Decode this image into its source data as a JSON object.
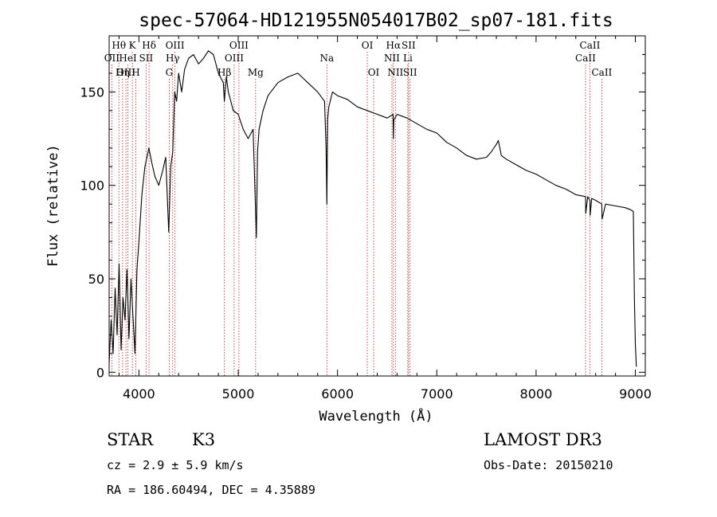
{
  "chart_data": {
    "type": "line",
    "title": "spec-57064-HD121955N054017B02_sp07-181.fits",
    "xlabel": "Wavelength (Å)",
    "ylabel": "Flux (relative)",
    "xlim": [
      3700,
      9100
    ],
    "ylim": [
      -2,
      180
    ],
    "xticks": [
      4000,
      5000,
      6000,
      7000,
      8000,
      9000
    ],
    "yticks": [
      0,
      50,
      100,
      150
    ],
    "series": [
      {
        "name": "flux",
        "x": [
          3700,
          3720,
          3740,
          3760,
          3780,
          3800,
          3820,
          3840,
          3860,
          3880,
          3900,
          3920,
          3940,
          3960,
          3980,
          4000,
          4030,
          4060,
          4100,
          4130,
          4160,
          4200,
          4240,
          4270,
          4300,
          4320,
          4340,
          4360,
          4380,
          4400,
          4430,
          4460,
          4500,
          4550,
          4600,
          4650,
          4700,
          4750,
          4800,
          4850,
          4860,
          4880,
          4900,
          4950,
          5000,
          5050,
          5100,
          5150,
          5170,
          5183,
          5195,
          5210,
          5250,
          5300,
          5400,
          5500,
          5600,
          5700,
          5800,
          5870,
          5885,
          5893,
          5900,
          5912,
          5950,
          6000,
          6100,
          6200,
          6300,
          6400,
          6500,
          6560,
          6563,
          6567,
          6600,
          6700,
          6800,
          6900,
          7000,
          7100,
          7200,
          7300,
          7400,
          7500,
          7550,
          7600,
          7620,
          7650,
          7700,
          7800,
          7900,
          8000,
          8100,
          8200,
          8300,
          8400,
          8498,
          8500,
          8520,
          8542,
          8545,
          8560,
          8600,
          8662,
          8665,
          8700,
          8800,
          8900,
          8950,
          8980,
          8990,
          9000,
          9010
        ],
        "values": [
          5,
          28,
          10,
          45,
          20,
          58,
          12,
          40,
          28,
          55,
          18,
          50,
          30,
          10,
          55,
          70,
          95,
          110,
          120,
          112,
          105,
          100,
          108,
          115,
          75,
          110,
          118,
          150,
          145,
          160,
          150,
          162,
          168,
          170,
          165,
          168,
          172,
          170,
          160,
          155,
          145,
          158,
          150,
          140,
          138,
          130,
          125,
          130,
          95,
          72,
          118,
          130,
          140,
          148,
          155,
          158,
          160,
          155,
          150,
          145,
          120,
          90,
          135,
          142,
          150,
          148,
          146,
          142,
          140,
          138,
          136,
          138,
          125,
          135,
          138,
          136,
          133,
          130,
          128,
          123,
          120,
          116,
          114,
          115,
          118,
          122,
          124,
          116,
          114,
          111,
          108,
          106,
          103,
          100,
          98,
          95,
          94,
          85,
          94,
          92,
          84,
          93,
          92,
          90,
          82,
          90,
          89,
          88,
          87,
          86,
          40,
          15,
          3
        ]
      }
    ],
    "line_ids": [
      {
        "label": "Hθ",
        "wavelength": 3798,
        "row": 1
      },
      {
        "label": "OII",
        "wavelength": 3727,
        "row": 2
      },
      {
        "label": "OIII",
        "wavelength": 3869,
        "row": 3
      },
      {
        "label": "K",
        "wavelength": 3934,
        "row": 1
      },
      {
        "label": "HeI",
        "wavelength": 3889,
        "row": 2
      },
      {
        "label": "Hη",
        "wavelength": 3835,
        "row": 3
      },
      {
        "label": "SII",
        "wavelength": 4072,
        "row": 2
      },
      {
        "label": "H",
        "wavelength": 3969,
        "row": 3
      },
      {
        "label": "Hδ",
        "wavelength": 4102,
        "row": 1
      },
      {
        "label": "OIII",
        "wavelength": 4363,
        "row": 1
      },
      {
        "label": "Hγ",
        "wavelength": 4340,
        "row": 2
      },
      {
        "label": "G",
        "wavelength": 4305,
        "row": 3
      },
      {
        "label": "OIII",
        "wavelength": 5007,
        "row": 1
      },
      {
        "label": "OIII",
        "wavelength": 4959,
        "row": 2
      },
      {
        "label": "Hβ",
        "wavelength": 4861,
        "row": 3
      },
      {
        "label": "Mg",
        "wavelength": 5175,
        "row": 3
      },
      {
        "label": "Na",
        "wavelength": 5893,
        "row": 2
      },
      {
        "label": "OI",
        "wavelength": 6300,
        "row": 1
      },
      {
        "label": "OI",
        "wavelength": 6364,
        "row": 3
      },
      {
        "label": "Hα",
        "wavelength": 6563,
        "row": 1
      },
      {
        "label": "NII",
        "wavelength": 6548,
        "row": 2
      },
      {
        "label": "NII",
        "wavelength": 6583,
        "row": 3
      },
      {
        "label": "SII",
        "wavelength": 6716,
        "row": 1
      },
      {
        "label": "Li",
        "wavelength": 6708,
        "row": 2
      },
      {
        "label": "SII",
        "wavelength": 6731,
        "row": 3
      },
      {
        "label": "CaII",
        "wavelength": 8542,
        "row": 1
      },
      {
        "label": "CaII",
        "wavelength": 8498,
        "row": 2
      },
      {
        "label": "CaII",
        "wavelength": 8662,
        "row": 3
      }
    ],
    "line_color": "#000000",
    "marker_color": "#b22222"
  },
  "info": {
    "class_label": "STAR",
    "subclass": "K3",
    "cz": "cz = 2.9 ± 5.9 km/s",
    "coords": "RA = 186.60494, DEC =   4.35889",
    "survey": "LAMOST DR3",
    "obs_date": "Obs-Date: 20150210"
  }
}
